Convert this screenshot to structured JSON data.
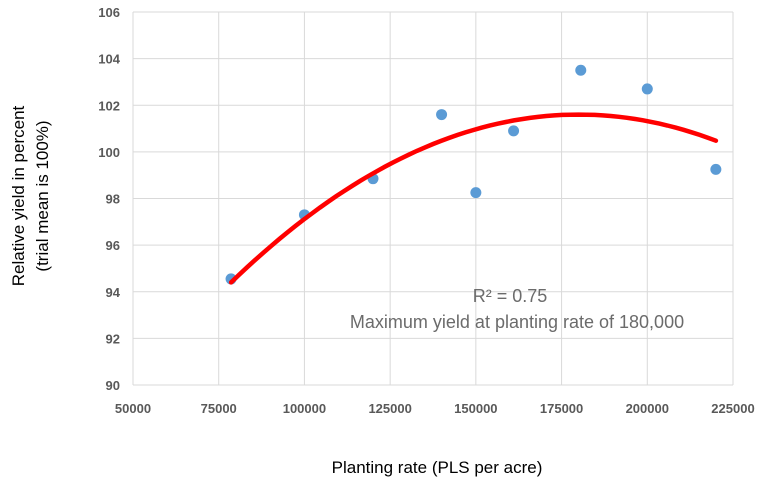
{
  "chart_data": {
    "type": "scatter",
    "xlabel": "Planting rate (PLS per acre)",
    "ylabel_line1": "Relative yield in percent",
    "ylabel_line2": "(trial mean is 100%)",
    "xlim": [
      50000,
      225000
    ],
    "ylim": [
      90,
      106
    ],
    "xticks": [
      50000,
      75000,
      100000,
      125000,
      150000,
      175000,
      200000,
      225000
    ],
    "yticks": [
      90,
      92,
      94,
      96,
      98,
      100,
      102,
      104,
      106
    ],
    "grid": true,
    "points": [
      {
        "x": 78600,
        "y": 94.55
      },
      {
        "x": 100000,
        "y": 97.3
      },
      {
        "x": 120000,
        "y": 98.85
      },
      {
        "x": 140000,
        "y": 101.6
      },
      {
        "x": 150000,
        "y": 98.25
      },
      {
        "x": 161000,
        "y": 100.9
      },
      {
        "x": 180600,
        "y": 103.5
      },
      {
        "x": 200000,
        "y": 102.7
      },
      {
        "x": 220000,
        "y": 99.25
      }
    ],
    "trendline": {
      "type": "polynomial-2",
      "x_range": [
        78600,
        220000
      ],
      "peak_x": 180000,
      "peak_y": 101.6,
      "start_y": 94.4,
      "end_y": 100.5
    },
    "annotations": {
      "r2": "R² = 0.75",
      "max": "Maximum yield at planting rate of 180,000"
    },
    "colors": {
      "points": "#5B9BD5",
      "trendline": "#FF0000",
      "grid": "#D9D9D9"
    }
  }
}
